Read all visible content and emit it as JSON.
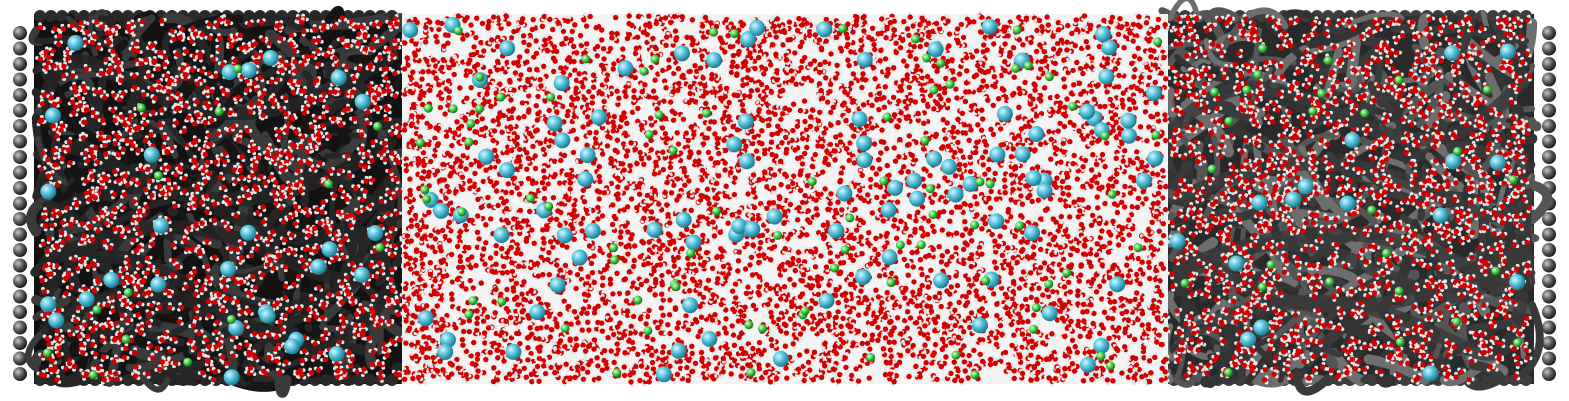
{
  "scene": {
    "description_kind": "molecular-dynamics-render",
    "colors": {
      "background": "#ffffff",
      "electrode_atom": "#5a5a5a",
      "electrode_atom_highlight": "#9a9a9a",
      "carbon_dark": "#161616",
      "carbon_mid": "#3a3a3a",
      "carbon_light": "#6e6e6e",
      "oxygen": "#d20000",
      "hydrogen": "#e8e8e8",
      "cation": "#5ec8e0",
      "anion": "#46d24a"
    },
    "regions": [
      "left-electrode-wall",
      "left-porous-carbon",
      "bulk-electrolyte",
      "right-porous-carbon",
      "right-electrode-wall"
    ]
  }
}
